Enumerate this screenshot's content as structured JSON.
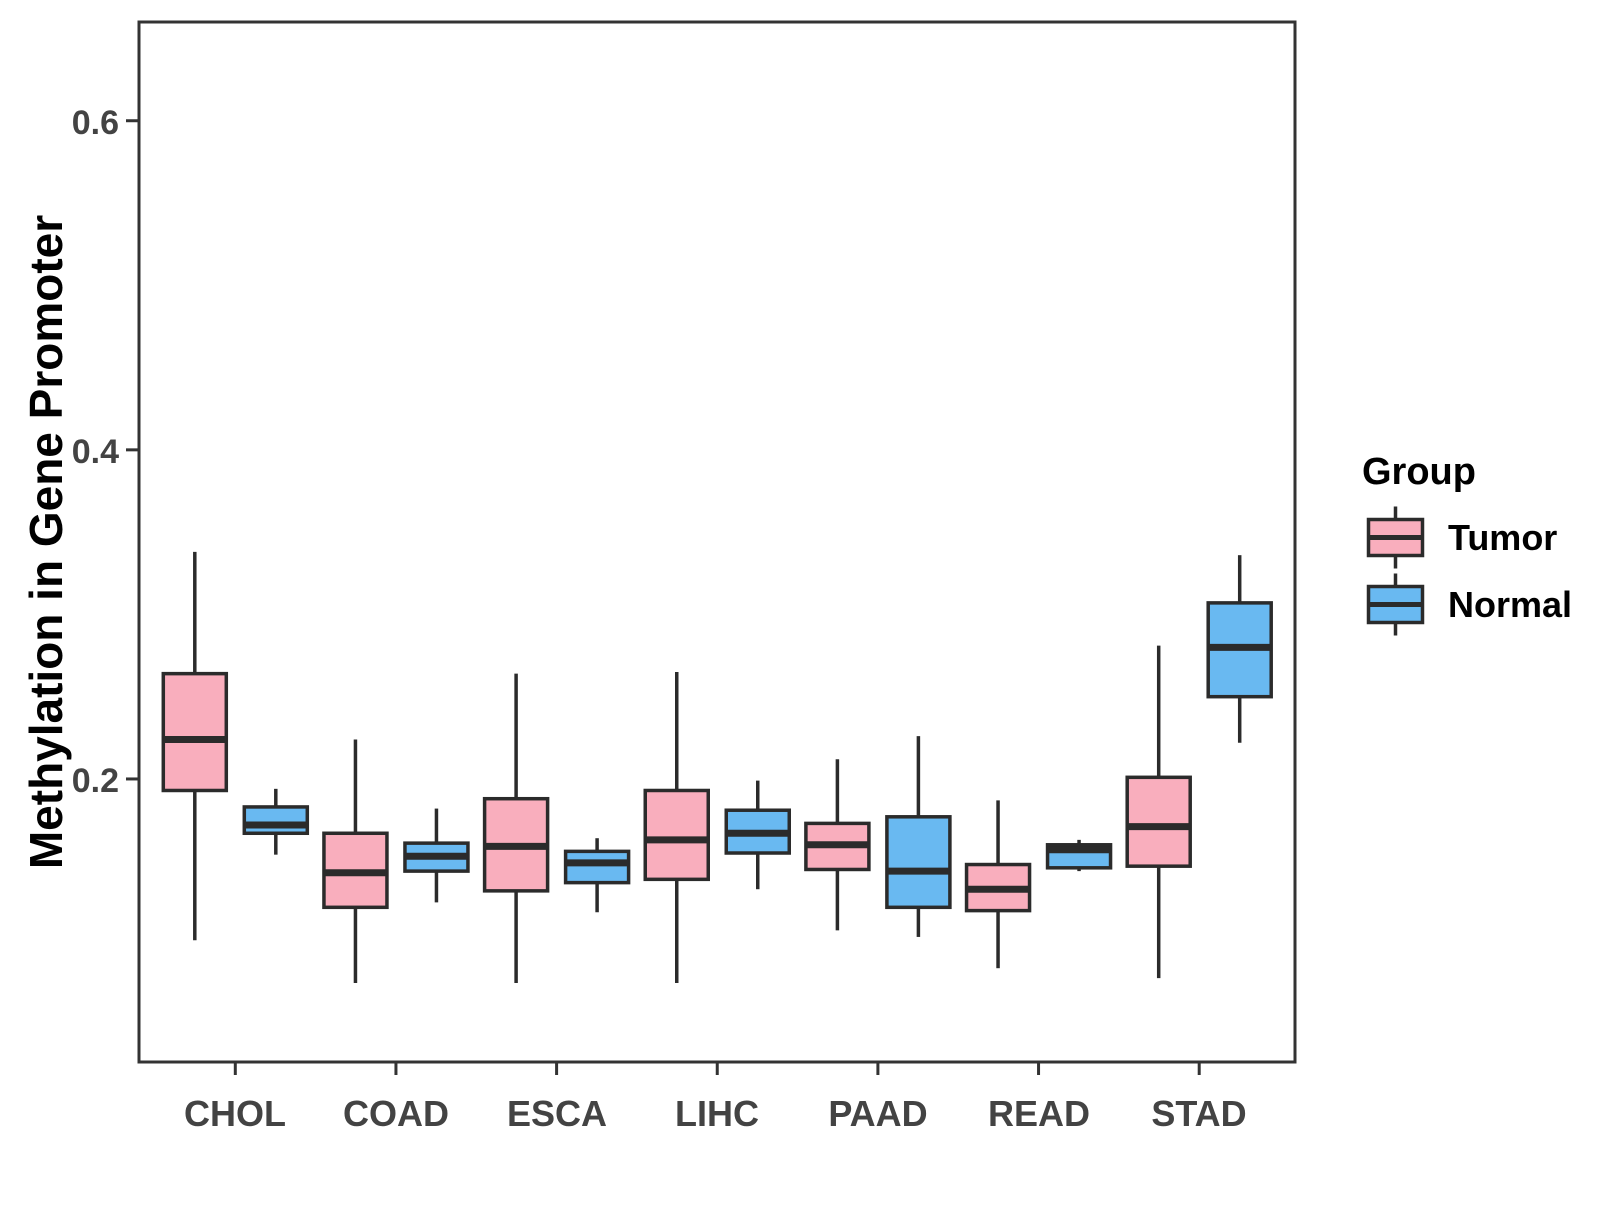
{
  "figure": {
    "y_axis_title": "Methylation in Gene Promoter",
    "legend_title": "Group"
  },
  "chart_data": {
    "type": "boxplot",
    "title": "",
    "xlabel": "",
    "ylabel": "Methylation in Gene Promoter",
    "grid": false,
    "legend_position": "right",
    "legend_title": "Group",
    "categories": [
      "CHOL",
      "COAD",
      "ESCA",
      "LIHC",
      "PAAD",
      "READ",
      "STAD"
    ],
    "y_ticks": [
      0.2,
      0.4,
      0.6
    ],
    "y_tick_labels": [
      "0.2",
      "0.4",
      "0.6"
    ],
    "ylim": [
      0.028,
      0.66
    ],
    "series": [
      {
        "name": "Tumor",
        "fill": "#F9AEBD",
        "stats": [
          {
            "min": 0.102,
            "q1": 0.193,
            "median": 0.224,
            "q3": 0.264,
            "max": 0.338
          },
          {
            "min": 0.076,
            "q1": 0.122,
            "median": 0.143,
            "q3": 0.167,
            "max": 0.224
          },
          {
            "min": 0.076,
            "q1": 0.132,
            "median": 0.159,
            "q3": 0.188,
            "max": 0.264
          },
          {
            "min": 0.076,
            "q1": 0.139,
            "median": 0.163,
            "q3": 0.193,
            "max": 0.265
          },
          {
            "min": 0.108,
            "q1": 0.145,
            "median": 0.16,
            "q3": 0.173,
            "max": 0.212
          },
          {
            "min": 0.085,
            "q1": 0.12,
            "median": 0.133,
            "q3": 0.148,
            "max": 0.187
          },
          {
            "min": 0.079,
            "q1": 0.147,
            "median": 0.171,
            "q3": 0.201,
            "max": 0.281
          }
        ]
      },
      {
        "name": "Normal",
        "fill": "#69B9F1",
        "stats": [
          {
            "min": 0.154,
            "q1": 0.167,
            "median": 0.172,
            "q3": 0.183,
            "max": 0.194
          },
          {
            "min": 0.125,
            "q1": 0.144,
            "median": 0.153,
            "q3": 0.161,
            "max": 0.182
          },
          {
            "min": 0.119,
            "q1": 0.137,
            "median": 0.149,
            "q3": 0.156,
            "max": 0.164
          },
          {
            "min": 0.133,
            "q1": 0.155,
            "median": 0.167,
            "q3": 0.181,
            "max": 0.199
          },
          {
            "min": 0.104,
            "q1": 0.122,
            "median": 0.144,
            "q3": 0.177,
            "max": 0.226
          },
          {
            "min": 0.144,
            "q1": 0.146,
            "median": 0.157,
            "q3": 0.16,
            "max": 0.163
          },
          {
            "min": 0.222,
            "q1": 0.25,
            "median": 0.28,
            "q3": 0.307,
            "max": 0.336
          }
        ]
      }
    ],
    "style": {
      "box_stroke": "#2B2B2B",
      "axis_stroke": "#333333",
      "tick_text_color": "#434343",
      "title_text_color": "#000000",
      "tumor_fill": "#F9AEBD",
      "normal_fill": "#69B9F1"
    }
  }
}
